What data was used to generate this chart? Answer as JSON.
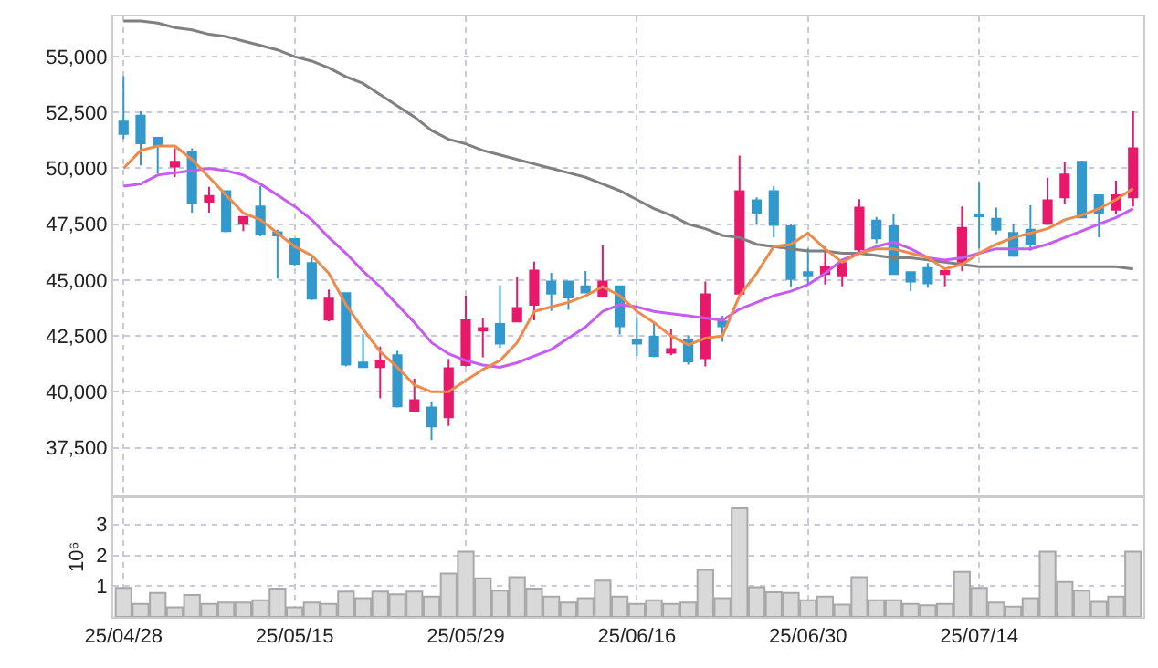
{
  "chart_data": [
    {
      "type": "candlestick",
      "categories": [
        null,
        null,
        null,
        null,
        null,
        null,
        null,
        null,
        null,
        null,
        null,
        null,
        null,
        null,
        null,
        null,
        null,
        null,
        null,
        null,
        null,
        null,
        null,
        null,
        null,
        null,
        null,
        null,
        null,
        null,
        null,
        null,
        null,
        null,
        null,
        null,
        null,
        null,
        null,
        null,
        null,
        null,
        null,
        null,
        null,
        null,
        null,
        null,
        null,
        null,
        null,
        null,
        null,
        null,
        null,
        null,
        null,
        null,
        null,
        null
      ],
      "ohlc": [
        [
          52090,
          54120,
          51320,
          51540
        ],
        [
          52360,
          52550,
          50130,
          51120
        ],
        [
          51370,
          51370,
          49750,
          51040
        ],
        [
          50080,
          50900,
          49610,
          50300
        ],
        [
          50710,
          50900,
          48020,
          48430
        ],
        [
          48510,
          49170,
          48020,
          48760
        ],
        [
          48980,
          48980,
          47140,
          47190
        ],
        [
          47520,
          47820,
          47190,
          47820
        ],
        [
          48290,
          49200,
          46970,
          47050
        ],
        [
          47140,
          47250,
          45070,
          47000
        ],
        [
          46830,
          46830,
          45620,
          45730
        ],
        [
          45760,
          46090,
          44110,
          44170
        ],
        [
          43230,
          44580,
          43150,
          44170
        ],
        [
          44410,
          44410,
          41140,
          41220
        ],
        [
          41310,
          42600,
          41110,
          41110
        ],
        [
          41110,
          42020,
          39710,
          41360
        ],
        [
          41640,
          41830,
          39300,
          39350
        ],
        [
          39130,
          40590,
          39080,
          39630
        ],
        [
          39300,
          39570,
          37840,
          38450
        ],
        [
          38860,
          41470,
          38470,
          41060
        ],
        [
          41200,
          44300,
          41140,
          43200
        ],
        [
          42740,
          43290,
          41550,
          42850
        ],
        [
          43040,
          44770,
          41970,
          42160
        ],
        [
          43150,
          45130,
          43150,
          43750
        ],
        [
          43890,
          45820,
          43200,
          45430
        ],
        [
          44940,
          45320,
          43620,
          44390
        ],
        [
          44940,
          44940,
          43670,
          44220
        ],
        [
          44720,
          45400,
          44440,
          44440
        ],
        [
          44300,
          46560,
          44300,
          44940
        ],
        [
          44720,
          44720,
          42570,
          42930
        ],
        [
          42300,
          43290,
          41610,
          42160
        ],
        [
          42460,
          43120,
          41550,
          41610
        ],
        [
          41750,
          42790,
          41640,
          41910
        ],
        [
          42300,
          42520,
          41220,
          41360
        ],
        [
          41500,
          44940,
          41140,
          44360
        ],
        [
          43150,
          43400,
          42240,
          42930
        ],
        [
          44390,
          50570,
          44360,
          48980
        ],
        [
          48570,
          48700,
          47470,
          48020
        ],
        [
          48980,
          49200,
          46920,
          47470
        ],
        [
          47410,
          47520,
          44720,
          45050
        ],
        [
          45350,
          46420,
          44800,
          45210
        ],
        [
          45270,
          46500,
          44800,
          45600
        ],
        [
          45210,
          45950,
          44720,
          45760
        ],
        [
          46370,
          48620,
          46230,
          48240
        ],
        [
          47660,
          47820,
          46640,
          46860
        ],
        [
          47410,
          47960,
          45270,
          45270
        ],
        [
          45350,
          45350,
          44520,
          44940
        ],
        [
          45540,
          45760,
          44660,
          44850
        ],
        [
          45270,
          45400,
          44720,
          45400
        ],
        [
          45820,
          48290,
          45400,
          47330
        ],
        [
          47930,
          49390,
          46420,
          47850
        ],
        [
          47740,
          48240,
          47050,
          47250
        ],
        [
          47110,
          47520,
          46040,
          46090
        ],
        [
          47250,
          48350,
          46310,
          46590
        ],
        [
          47520,
          49580,
          47520,
          48570
        ],
        [
          48700,
          50270,
          48430,
          49720
        ],
        [
          50300,
          50350,
          47800,
          47800
        ],
        [
          48790,
          48790,
          46920,
          48020
        ],
        [
          48150,
          49450,
          47960,
          48790
        ],
        [
          48700,
          52550,
          48290,
          50900
        ]
      ],
      "colors": [
        "#3399cc",
        "#3399cc",
        "#3399cc",
        "#e8196a",
        "#3399cc",
        "#e8196a",
        "#3399cc",
        "#e8196a",
        "#3399cc",
        "#3399cc",
        "#3399cc",
        "#3399cc",
        "#e8196a",
        "#3399cc",
        "#3399cc",
        "#e8196a",
        "#3399cc",
        "#e8196a",
        "#3399cc",
        "#e8196a",
        "#e8196a",
        "#e8196a",
        "#3399cc",
        "#e8196a",
        "#e8196a",
        "#3399cc",
        "#3399cc",
        "#3399cc",
        "#e8196a",
        "#3399cc",
        "#3399cc",
        "#3399cc",
        "#e8196a",
        "#3399cc",
        "#e8196a",
        "#3399cc",
        "#e8196a",
        "#3399cc",
        "#3399cc",
        "#3399cc",
        "#3399cc",
        "#e8196a",
        "#e8196a",
        "#e8196a",
        "#3399cc",
        "#3399cc",
        "#3399cc",
        "#3399cc",
        "#e8196a",
        "#e8196a",
        "#3399cc",
        "#3399cc",
        "#3399cc",
        "#3399cc",
        "#e8196a",
        "#e8196a",
        "#3399cc",
        "#3399cc",
        "#e8196a",
        "#e8196a"
      ],
      "series": [
        {
          "type": "line",
          "color": "#808080",
          "values": [
            56600,
            56600,
            56500,
            56300,
            56200,
            56000,
            55900,
            55700,
            55500,
            55300,
            55000,
            54800,
            54500,
            54100,
            53800,
            53300,
            52800,
            52300,
            51700,
            51300,
            51100,
            50800,
            50600,
            50400,
            50200,
            50000,
            49800,
            49600,
            49300,
            49000,
            48600,
            48200,
            47900,
            47500,
            47300,
            47000,
            46900,
            46600,
            46500,
            46400,
            46300,
            46300,
            46200,
            46200,
            46100,
            46000,
            46000,
            45900,
            45800,
            45700,
            45600,
            45600,
            45600,
            45600,
            45600,
            45600,
            45600,
            45600,
            45600,
            45500
          ]
        },
        {
          "type": "line",
          "color": "#c75cf0",
          "values": [
            49200,
            49300,
            49700,
            49800,
            49900,
            50000,
            49900,
            49700,
            49300,
            48800,
            48300,
            47700,
            46900,
            46200,
            45400,
            44700,
            43900,
            43100,
            42200,
            41700,
            41400,
            41200,
            41100,
            41300,
            41600,
            41900,
            42400,
            42900,
            43600,
            43900,
            43800,
            43600,
            43500,
            43400,
            43300,
            43200,
            43700,
            44000,
            44300,
            44500,
            44800,
            45300,
            45900,
            46200,
            46500,
            46700,
            46400,
            46000,
            45900,
            46000,
            46200,
            46400,
            46400,
            46400,
            46600,
            46900,
            47200,
            47500,
            47800,
            48200
          ]
        },
        {
          "type": "line",
          "color": "#f08a4b",
          "values": [
            50000,
            50800,
            51000,
            51000,
            50400,
            49600,
            48800,
            48000,
            47700,
            47100,
            46500,
            46100,
            45300,
            43900,
            42800,
            41800,
            41100,
            40300,
            40000,
            40000,
            40500,
            41000,
            41400,
            42200,
            43600,
            43800,
            44000,
            44300,
            44700,
            44300,
            43600,
            43100,
            42500,
            42100,
            42400,
            42500,
            44300,
            45300,
            46500,
            46600,
            47100,
            46400,
            45800,
            46200,
            46400,
            46400,
            46200,
            46000,
            45500,
            45700,
            46200,
            46600,
            46900,
            47100,
            47300,
            47700,
            47900,
            48200,
            48600,
            49100
          ]
        }
      ],
      "ylim": [
        35300,
        56800
      ],
      "yticks": [
        {
          "value": 37500,
          "label": "37,500"
        },
        {
          "value": 40000,
          "label": "40,000"
        },
        {
          "value": 42500,
          "label": "42,500"
        },
        {
          "value": 45000,
          "label": "45,000"
        },
        {
          "value": 47500,
          "label": "47,500"
        },
        {
          "value": 50000,
          "label": "50,000"
        },
        {
          "value": 52500,
          "label": "52,500"
        },
        {
          "value": 55000,
          "label": "55,000"
        }
      ],
      "grid": true,
      "tick_labels": "y"
    },
    {
      "type": "bar",
      "categories": [
        "25/04/28",
        null,
        null,
        null,
        null,
        null,
        null,
        null,
        null,
        null,
        "25/05/15",
        null,
        null,
        null,
        null,
        null,
        null,
        null,
        null,
        null,
        "25/05/29",
        null,
        null,
        null,
        null,
        null,
        null,
        null,
        null,
        null,
        "25/06/16",
        null,
        null,
        null,
        null,
        null,
        null,
        null,
        null,
        null,
        "25/06/30",
        null,
        null,
        null,
        null,
        null,
        null,
        null,
        null,
        null,
        "25/07/14",
        null,
        null,
        null,
        null,
        null,
        null,
        null,
        null,
        null
      ],
      "values": [
        0.94,
        0.42,
        0.78,
        0.31,
        0.71,
        0.42,
        0.47,
        0.47,
        0.54,
        0.92,
        0.31,
        0.47,
        0.42,
        0.82,
        0.61,
        0.82,
        0.73,
        0.82,
        0.66,
        1.41,
        2.12,
        1.25,
        0.85,
        1.29,
        0.92,
        0.66,
        0.47,
        0.61,
        1.18,
        0.66,
        0.42,
        0.54,
        0.42,
        0.47,
        1.53,
        0.61,
        3.53,
        0.96,
        0.8,
        0.78,
        0.54,
        0.66,
        0.4,
        1.29,
        0.54,
        0.54,
        0.42,
        0.38,
        0.42,
        1.46,
        0.94,
        0.47,
        0.33,
        0.61,
        2.12,
        1.13,
        0.85,
        0.49,
        0.66,
        2.12
      ],
      "color": "#d9d9d9",
      "ylabel": "10⁶",
      "ylim": [
        0,
        3.9
      ],
      "yticks": [
        1,
        2,
        3
      ],
      "grid": true
    }
  ]
}
